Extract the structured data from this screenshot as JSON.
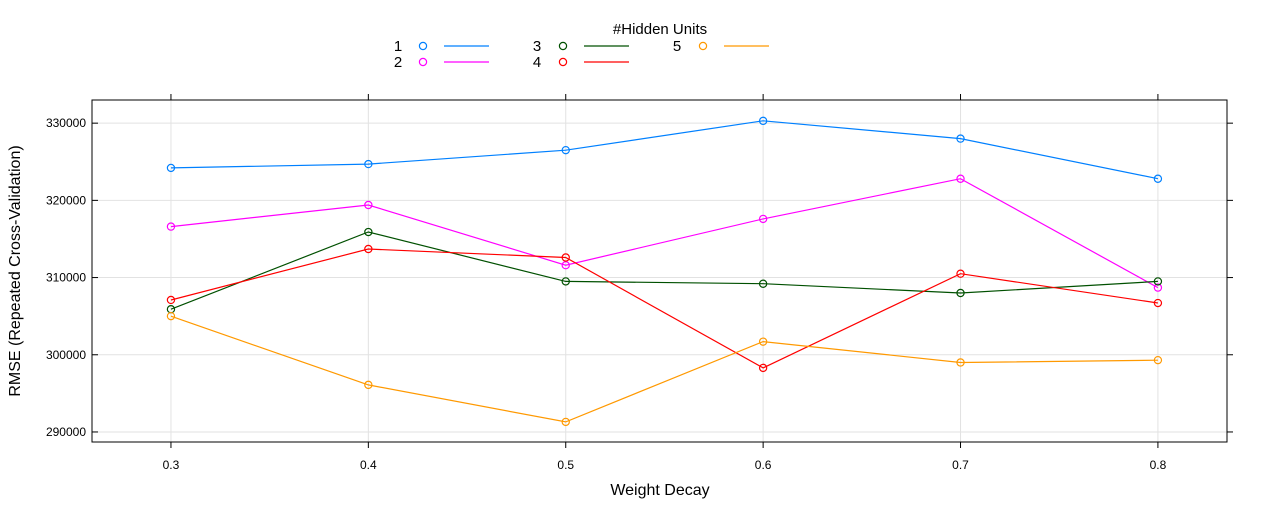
{
  "chart_data": {
    "type": "line",
    "legend_title": "#Hidden Units",
    "legend_placement": "top",
    "xlabel": "Weight Decay",
    "ylabel": "RMSE (Repeated Cross-Validation)",
    "x": [
      0.3,
      0.4,
      0.5,
      0.6,
      0.7,
      0.8
    ],
    "x_tick_labels": [
      "0.3",
      "0.4",
      "0.5",
      "0.6",
      "0.7",
      "0.8"
    ],
    "xlim": [
      0.26,
      0.835
    ],
    "ylim": [
      288700,
      333000
    ],
    "y_ticks": [
      290000,
      300000,
      310000,
      320000,
      330000
    ],
    "y_tick_labels": [
      "290000",
      "300000",
      "310000",
      "320000",
      "330000"
    ],
    "grid": true,
    "series": [
      {
        "name": "1",
        "color": "#0080ff",
        "values": [
          324200,
          324700,
          326500,
          330300,
          328000,
          322800
        ]
      },
      {
        "name": "2",
        "color": "#ff00ff",
        "values": [
          316600,
          319400,
          311600,
          317600,
          322800,
          308700
        ]
      },
      {
        "name": "3",
        "color": "#005000",
        "values": [
          305900,
          315900,
          309500,
          309200,
          308000,
          309500
        ]
      },
      {
        "name": "4",
        "color": "#ff0000",
        "values": [
          307100,
          313700,
          312600,
          298300,
          310500,
          306700
        ]
      },
      {
        "name": "5",
        "color": "#ff9900",
        "values": [
          305000,
          296100,
          291300,
          301700,
          299000,
          299300
        ]
      }
    ]
  }
}
